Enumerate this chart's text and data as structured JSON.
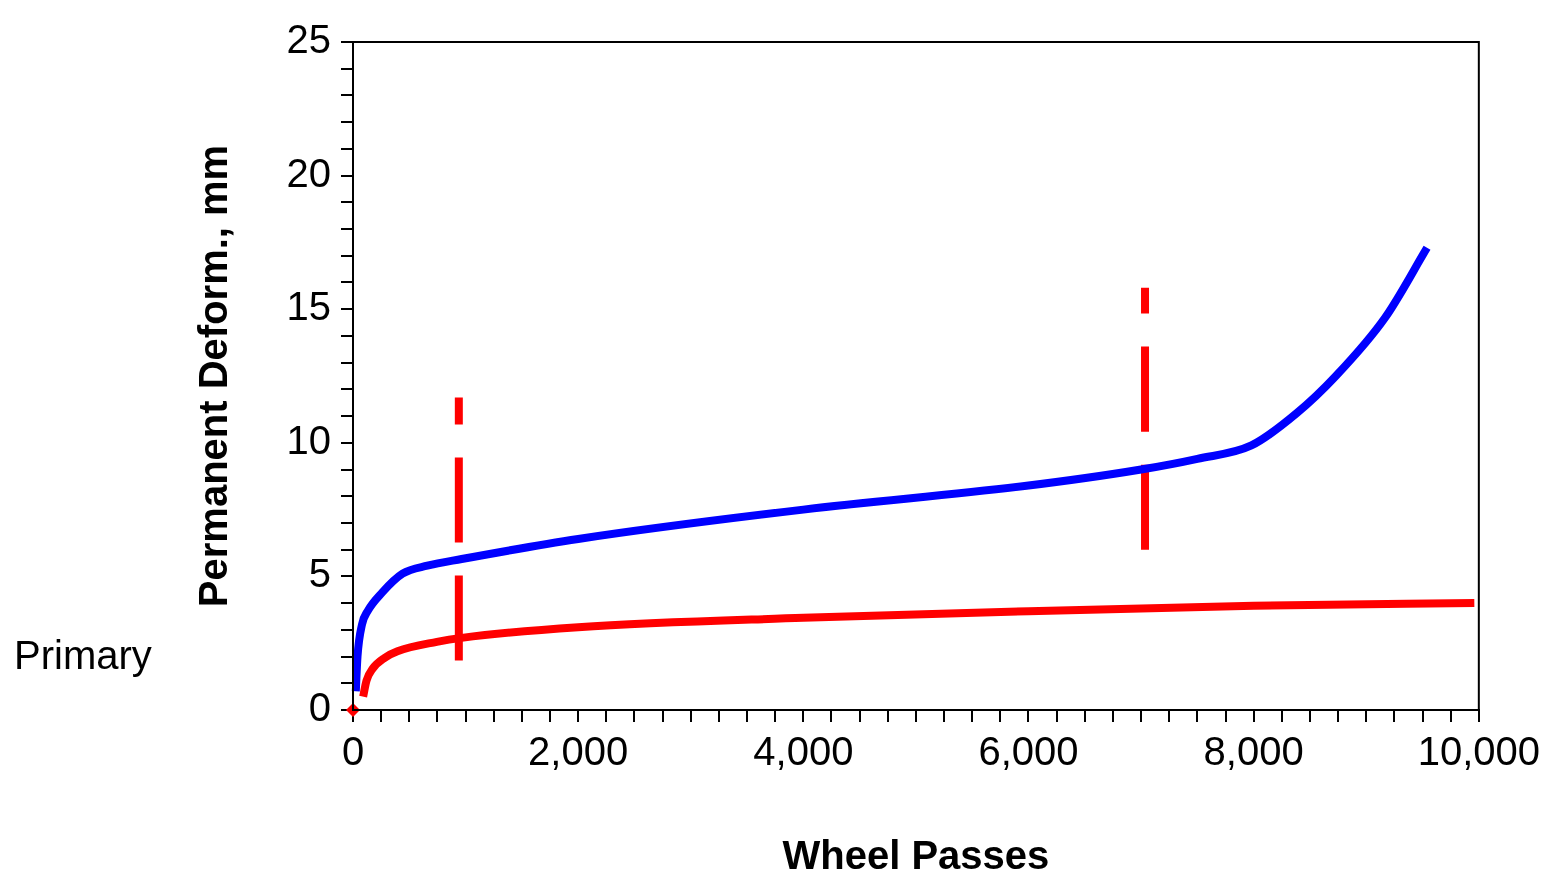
{
  "chart_data": {
    "type": "line",
    "xlabel": "Wheel Passes",
    "ylabel": "Permanent Deform., mm",
    "annotations": [
      "Primary"
    ],
    "xlim": [
      0,
      10000
    ],
    "ylim": [
      0,
      25
    ],
    "xticks": [
      0,
      {
        "value": 250,
        "label": null
      },
      {
        "value": 500,
        "label": null
      },
      {
        "value": 750,
        "label": null
      },
      {
        "value": 1000,
        "label": null
      },
      {
        "value": 1250,
        "label": null
      },
      {
        "value": 1500,
        "label": null
      },
      {
        "value": 1750,
        "label": null
      },
      {
        "value": 2000,
        "label": "2,000"
      },
      {
        "value": 2250,
        "label": null
      },
      {
        "value": 2500,
        "label": null
      },
      {
        "value": 2750,
        "label": null
      },
      {
        "value": 3000,
        "label": null
      },
      {
        "value": 3250,
        "label": null
      },
      {
        "value": 3500,
        "label": null
      },
      {
        "value": 3750,
        "label": null
      },
      {
        "value": 4000,
        "label": "4,000"
      },
      {
        "value": 4250,
        "label": null
      },
      {
        "value": 4500,
        "label": null
      },
      {
        "value": 4750,
        "label": null
      },
      {
        "value": 5000,
        "label": null
      },
      {
        "value": 5250,
        "label": null
      },
      {
        "value": 5500,
        "label": null
      },
      {
        "value": 5750,
        "label": null
      },
      {
        "value": 6000,
        "label": "6,000"
      },
      {
        "value": 6250,
        "label": null
      },
      {
        "value": 6500,
        "label": null
      },
      {
        "value": 6750,
        "label": null
      },
      {
        "value": 7000,
        "label": null
      },
      {
        "value": 7250,
        "label": null
      },
      {
        "value": 7500,
        "label": null
      },
      {
        "value": 7750,
        "label": null
      },
      {
        "value": 8000,
        "label": "8,000"
      },
      {
        "value": 8250,
        "label": null
      },
      {
        "value": 8500,
        "label": null
      },
      {
        "value": 8750,
        "label": null
      },
      {
        "value": 9000,
        "label": null
      },
      {
        "value": 9250,
        "label": null
      },
      {
        "value": 9500,
        "label": null
      },
      {
        "value": 9750,
        "label": null
      },
      {
        "value": 10000,
        "label": "10,000"
      }
    ],
    "yticks": [
      0,
      {
        "value": 1,
        "label": null
      },
      {
        "value": 2,
        "label": null
      },
      {
        "value": 3,
        "label": null
      },
      {
        "value": 4,
        "label": null
      },
      5,
      {
        "value": 6,
        "label": null
      },
      {
        "value": 7,
        "label": null
      },
      {
        "value": 8,
        "label": null
      },
      {
        "value": 9,
        "label": null
      },
      10,
      {
        "value": 11,
        "label": null
      },
      {
        "value": 12,
        "label": null
      },
      {
        "value": 13,
        "label": null
      },
      {
        "value": 14,
        "label": null
      },
      15,
      {
        "value": 16,
        "label": null
      },
      {
        "value": 17,
        "label": null
      },
      {
        "value": 18,
        "label": null
      },
      {
        "value": 19,
        "label": null
      },
      20,
      {
        "value": 21,
        "label": null
      },
      {
        "value": 22,
        "label": null
      },
      {
        "value": 23,
        "label": null
      },
      {
        "value": 24,
        "label": null
      },
      25
    ],
    "marker": "none",
    "grid": false,
    "legend": false,
    "series": [
      {
        "color": "#0000ff",
        "x": [
          25,
          40,
          80,
          130,
          260,
          440,
          660,
          965,
          2000,
          4000,
          6000,
          7000,
          7500,
          7980,
          8380,
          8730,
          9170,
          9540
        ],
        "values": [
          0.7,
          2.0,
          3.2,
          3.7,
          4.4,
          5.1,
          5.4,
          5.65,
          6.4,
          7.5,
          8.4,
          9.0,
          9.4,
          9.9,
          11.1,
          12.5,
          14.7,
          17.3
        ]
      },
      {
        "color": "#ff0000",
        "x": [
          90,
          120,
          175,
          280,
          395,
          745,
          965,
          2000,
          4000,
          6000,
          8000,
          9960
        ],
        "values": [
          0.5,
          1.1,
          1.55,
          1.95,
          2.2,
          2.55,
          2.7,
          3.1,
          3.45,
          3.7,
          3.9,
          4.0
        ]
      },
      {
        "color": "#ff0000",
        "line_style": "dashed",
        "x": [
          940,
          940
        ],
        "values": [
          1.85,
          11.7
        ]
      },
      {
        "color": "#ff0000",
        "line_style": "dashed",
        "x": [
          7035,
          7035
        ],
        "values": [
          6.0,
          15.8
        ]
      },
      {
        "type": "scatter",
        "color": "#ff0000",
        "marker": "diamond",
        "x": [
          0
        ],
        "values": [
          0
        ]
      }
    ]
  }
}
